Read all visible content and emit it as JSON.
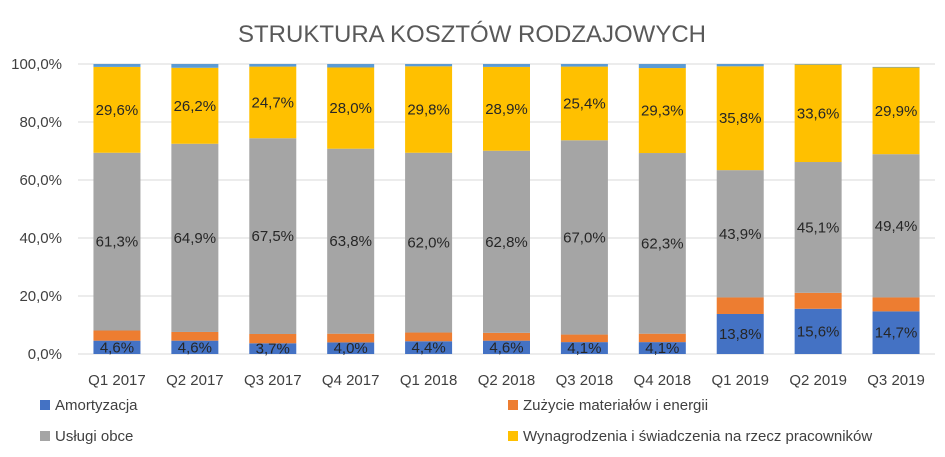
{
  "chart_data": {
    "type": "bar",
    "stacked": true,
    "title": "STRUKTURA KOSZTÓW RODZAJOWYCH",
    "categories": [
      "Q1 2017",
      "Q2 2017",
      "Q3 2017",
      "Q4 2017",
      "Q1 2018",
      "Q2 2018",
      "Q3 2018",
      "Q4 2018",
      "Q1 2019",
      "Q2 2019",
      "Q3 2019"
    ],
    "ylim": [
      0,
      100
    ],
    "y_ticks": [
      "0,0%",
      "20,0%",
      "40,0%",
      "60,0%",
      "80,0%",
      "100,0%"
    ],
    "grid": true,
    "legend_position": "bottom",
    "series": [
      {
        "name": "Amortyzacja",
        "color": "#4472C4",
        "values": [
          4.6,
          4.6,
          3.7,
          4.0,
          4.4,
          4.6,
          4.1,
          4.1,
          13.8,
          15.6,
          14.7
        ],
        "labels": [
          "4,6%",
          "4,6%",
          "3,7%",
          "4,0%",
          "4,4%",
          "4,6%",
          "4,1%",
          "4,1%",
          "13,8%",
          "15,6%",
          "14,7%"
        ]
      },
      {
        "name": "Zużycie materiałów i energii",
        "color": "#ED7D31",
        "values": [
          3.5,
          3.0,
          3.2,
          3.0,
          3.0,
          2.7,
          2.6,
          2.9,
          5.7,
          5.5,
          4.8
        ],
        "labels": null
      },
      {
        "name": "Usługi obce",
        "color": "#A5A5A5",
        "values": [
          61.3,
          64.9,
          67.5,
          63.8,
          62.0,
          62.8,
          67.0,
          62.3,
          43.9,
          45.1,
          49.4
        ],
        "labels": [
          "61,3%",
          "64,9%",
          "67,5%",
          "63,8%",
          "62,0%",
          "62,8%",
          "67,0%",
          "62,3%",
          "43,9%",
          "45,1%",
          "49,4%"
        ]
      },
      {
        "name": "Wynagrodzenia i świadczenia na rzecz pracowników",
        "color": "#FFC000",
        "values": [
          29.6,
          26.2,
          24.7,
          28.0,
          29.8,
          28.9,
          25.4,
          29.3,
          35.8,
          33.6,
          29.9
        ],
        "labels": [
          "29,6%",
          "26,2%",
          "24,7%",
          "28,0%",
          "29,8%",
          "28,9%",
          "25,4%",
          "29,3%",
          "35,8%",
          "33,6%",
          "29,9%"
        ]
      },
      {
        "name": "",
        "color": "#5B9BD5",
        "values": [
          1.0,
          1.3,
          0.9,
          1.2,
          0.8,
          1.0,
          0.9,
          1.4,
          0.8,
          0.2,
          0.2
        ],
        "labels": null
      }
    ]
  }
}
